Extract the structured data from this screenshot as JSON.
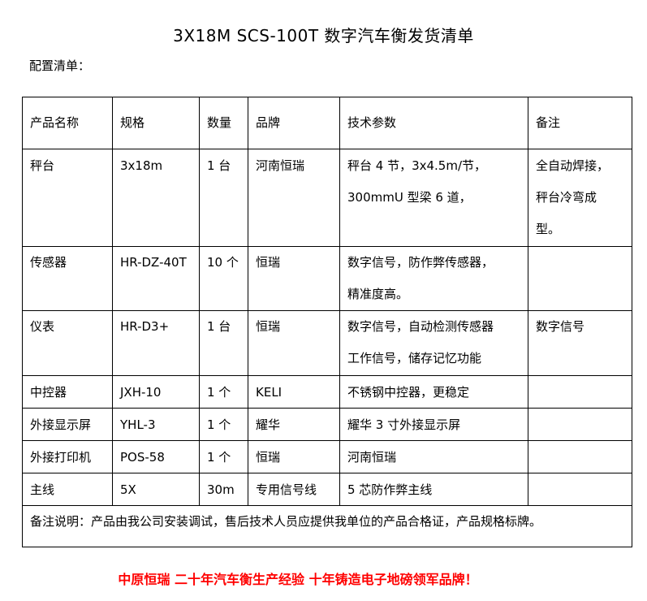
{
  "title": "3X18M SCS-100T 数字汽车衡发货清单",
  "subtitle": "配置清单：",
  "table": {
    "headers": [
      "产品名称",
      "规格",
      "数量",
      "品牌",
      "技术参数",
      "备注"
    ],
    "rows": [
      {
        "name": "秤台",
        "spec": "3x18m",
        "qty": "1 台",
        "brand": "河南恒瑞",
        "tech": [
          "秤台 4 节，3x4.5m/节，",
          "300mmU 型梁 6 道，"
        ],
        "remark": [
          "全自动焊接，",
          "秤台冷弯成",
          "型。"
        ]
      },
      {
        "name": "传感器",
        "spec": "HR-DZ-40T",
        "qty": "10 个",
        "brand": "恒瑞",
        "tech": [
          "数字信号，防作弊传感器，",
          "精准度高。"
        ],
        "remark": [
          ""
        ]
      },
      {
        "name": "仪表",
        "spec": "HR-D3+",
        "qty": "1 台",
        "brand": "恒瑞",
        "tech": [
          "数字信号，自动检测传感器",
          "工作信号，储存记忆功能"
        ],
        "remark": [
          "数字信号"
        ]
      },
      {
        "name": "中控器",
        "spec": "JXH-10",
        "qty": "1 个",
        "brand": "KELI",
        "tech": [
          "不锈钢中控器，更稳定"
        ],
        "remark": [
          ""
        ]
      },
      {
        "name": "外接显示屏",
        "spec": "YHL-3",
        "qty": "1 个",
        "brand": "耀华",
        "tech": [
          "耀华 3 寸外接显示屏"
        ],
        "remark": [
          ""
        ]
      },
      {
        "name": "外接打印机",
        "spec": "POS-58",
        "qty": "1 个",
        "brand": "恒瑞",
        "tech": [
          "河南恒瑞"
        ],
        "remark": [
          ""
        ]
      },
      {
        "name": "主线",
        "spec": "5X",
        "qty": "30m",
        "brand": "专用信号线",
        "tech": [
          "5 芯防作弊主线"
        ],
        "remark": [
          ""
        ]
      }
    ],
    "note": "备注说明：产品由我公司安装调试，售后技术人员应提供我单位的产品合格证，产品规格标牌。"
  },
  "slogan": "中原恒瑞 二十年汽车衡生产经验 十年铸造电子地磅领军品牌！",
  "colors": {
    "slogan": "#ff0000",
    "border": "#000000"
  }
}
